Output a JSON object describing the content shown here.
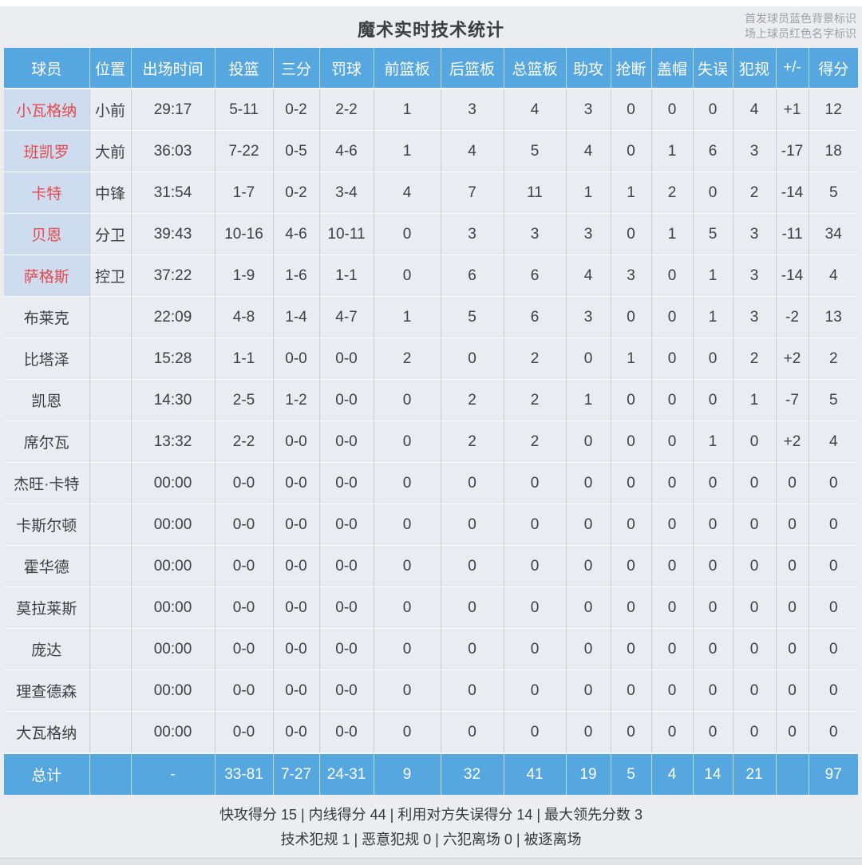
{
  "title": "魔术实时技术统计",
  "legend": {
    "line1": "首发球员蓝色背景标识",
    "line2": "场上球员红色名字标识"
  },
  "colors": {
    "header_blue": "#56a7df",
    "starter_name_bg": "#cddcee",
    "oncourt_name_red": "#e6484e",
    "row_bg": "#e9ecf0"
  },
  "columns": [
    {
      "key": "player",
      "label": "球员"
    },
    {
      "key": "position",
      "label": "位置"
    },
    {
      "key": "minutes",
      "label": "出场时间"
    },
    {
      "key": "field-goals",
      "label": "投篮"
    },
    {
      "key": "three-pointers",
      "label": "三分"
    },
    {
      "key": "free-throws",
      "label": "罚球"
    },
    {
      "key": "offensive-rebounds",
      "label": "前篮板"
    },
    {
      "key": "defensive-rebounds",
      "label": "后篮板"
    },
    {
      "key": "total-rebounds",
      "label": "总篮板"
    },
    {
      "key": "assists",
      "label": "助攻"
    },
    {
      "key": "steals",
      "label": "抢断"
    },
    {
      "key": "blocks",
      "label": "盖帽"
    },
    {
      "key": "turnovers",
      "label": "失误"
    },
    {
      "key": "fouls",
      "label": "犯规"
    },
    {
      "key": "plus-minus",
      "label": "+/-"
    },
    {
      "key": "points",
      "label": "得分"
    }
  ],
  "players": [
    {
      "name": "小瓦格纳",
      "starter": true,
      "red_name": true,
      "stats": [
        "小前",
        "29:17",
        "5-11",
        "0-2",
        "2-2",
        "1",
        "3",
        "4",
        "3",
        "0",
        "0",
        "0",
        "4",
        "+1",
        "12"
      ]
    },
    {
      "name": "班凯罗",
      "starter": true,
      "red_name": true,
      "stats": [
        "大前",
        "36:03",
        "7-22",
        "0-5",
        "4-6",
        "1",
        "4",
        "5",
        "4",
        "0",
        "1",
        "6",
        "3",
        "-17",
        "18"
      ]
    },
    {
      "name": "卡特",
      "starter": true,
      "red_name": true,
      "stats": [
        "中锋",
        "31:54",
        "1-7",
        "0-2",
        "3-4",
        "4",
        "7",
        "11",
        "1",
        "1",
        "2",
        "0",
        "2",
        "-14",
        "5"
      ]
    },
    {
      "name": "贝恩",
      "starter": true,
      "red_name": true,
      "stats": [
        "分卫",
        "39:43",
        "10-16",
        "4-6",
        "10-11",
        "0",
        "3",
        "3",
        "3",
        "0",
        "1",
        "5",
        "3",
        "-11",
        "34"
      ]
    },
    {
      "name": "萨格斯",
      "starter": true,
      "red_name": true,
      "stats": [
        "控卫",
        "37:22",
        "1-9",
        "1-6",
        "1-1",
        "0",
        "6",
        "6",
        "4",
        "3",
        "0",
        "1",
        "3",
        "-14",
        "4"
      ]
    },
    {
      "name": "布莱克",
      "starter": false,
      "red_name": false,
      "stats": [
        "",
        "22:09",
        "4-8",
        "1-4",
        "4-7",
        "1",
        "5",
        "6",
        "3",
        "0",
        "0",
        "1",
        "3",
        "-2",
        "13"
      ]
    },
    {
      "name": "比塔泽",
      "starter": false,
      "red_name": false,
      "stats": [
        "",
        "15:28",
        "1-1",
        "0-0",
        "0-0",
        "2",
        "0",
        "2",
        "0",
        "1",
        "0",
        "0",
        "2",
        "+2",
        "2"
      ]
    },
    {
      "name": "凯恩",
      "starter": false,
      "red_name": false,
      "stats": [
        "",
        "14:30",
        "2-5",
        "1-2",
        "0-0",
        "0",
        "2",
        "2",
        "1",
        "0",
        "0",
        "0",
        "1",
        "-7",
        "5"
      ]
    },
    {
      "name": "席尔瓦",
      "starter": false,
      "red_name": false,
      "stats": [
        "",
        "13:32",
        "2-2",
        "0-0",
        "0-0",
        "0",
        "2",
        "2",
        "0",
        "0",
        "0",
        "1",
        "0",
        "+2",
        "4"
      ]
    },
    {
      "name": "杰旺·卡特",
      "starter": false,
      "red_name": false,
      "stats": [
        "",
        "00:00",
        "0-0",
        "0-0",
        "0-0",
        "0",
        "0",
        "0",
        "0",
        "0",
        "0",
        "0",
        "0",
        "0",
        "0"
      ]
    },
    {
      "name": "卡斯尔顿",
      "starter": false,
      "red_name": false,
      "stats": [
        "",
        "00:00",
        "0-0",
        "0-0",
        "0-0",
        "0",
        "0",
        "0",
        "0",
        "0",
        "0",
        "0",
        "0",
        "0",
        "0"
      ]
    },
    {
      "name": "霍华德",
      "starter": false,
      "red_name": false,
      "stats": [
        "",
        "00:00",
        "0-0",
        "0-0",
        "0-0",
        "0",
        "0",
        "0",
        "0",
        "0",
        "0",
        "0",
        "0",
        "0",
        "0"
      ]
    },
    {
      "name": "莫拉莱斯",
      "starter": false,
      "red_name": false,
      "stats": [
        "",
        "00:00",
        "0-0",
        "0-0",
        "0-0",
        "0",
        "0",
        "0",
        "0",
        "0",
        "0",
        "0",
        "0",
        "0",
        "0"
      ]
    },
    {
      "name": "庞达",
      "starter": false,
      "red_name": false,
      "stats": [
        "",
        "00:00",
        "0-0",
        "0-0",
        "0-0",
        "0",
        "0",
        "0",
        "0",
        "0",
        "0",
        "0",
        "0",
        "0",
        "0"
      ]
    },
    {
      "name": "理查德森",
      "starter": false,
      "red_name": false,
      "stats": [
        "",
        "00:00",
        "0-0",
        "0-0",
        "0-0",
        "0",
        "0",
        "0",
        "0",
        "0",
        "0",
        "0",
        "0",
        "0",
        "0"
      ]
    },
    {
      "name": "大瓦格纳",
      "starter": false,
      "red_name": false,
      "stats": [
        "",
        "00:00",
        "0-0",
        "0-0",
        "0-0",
        "0",
        "0",
        "0",
        "0",
        "0",
        "0",
        "0",
        "0",
        "0",
        "0"
      ]
    }
  ],
  "total": {
    "label": "总计",
    "stats": [
      "",
      "-",
      "33-81",
      "7-27",
      "24-31",
      "9",
      "32",
      "41",
      "19",
      "5",
      "4",
      "14",
      "21",
      "",
      "97"
    ]
  },
  "footer": {
    "line1": "快攻得分 15 | 内线得分 44 | 利用对方失误得分 14 | 最大领先分数 3",
    "line2": "技术犯规 1 | 恶意犯规 0 | 六犯离场 0 | 被逐离场"
  }
}
